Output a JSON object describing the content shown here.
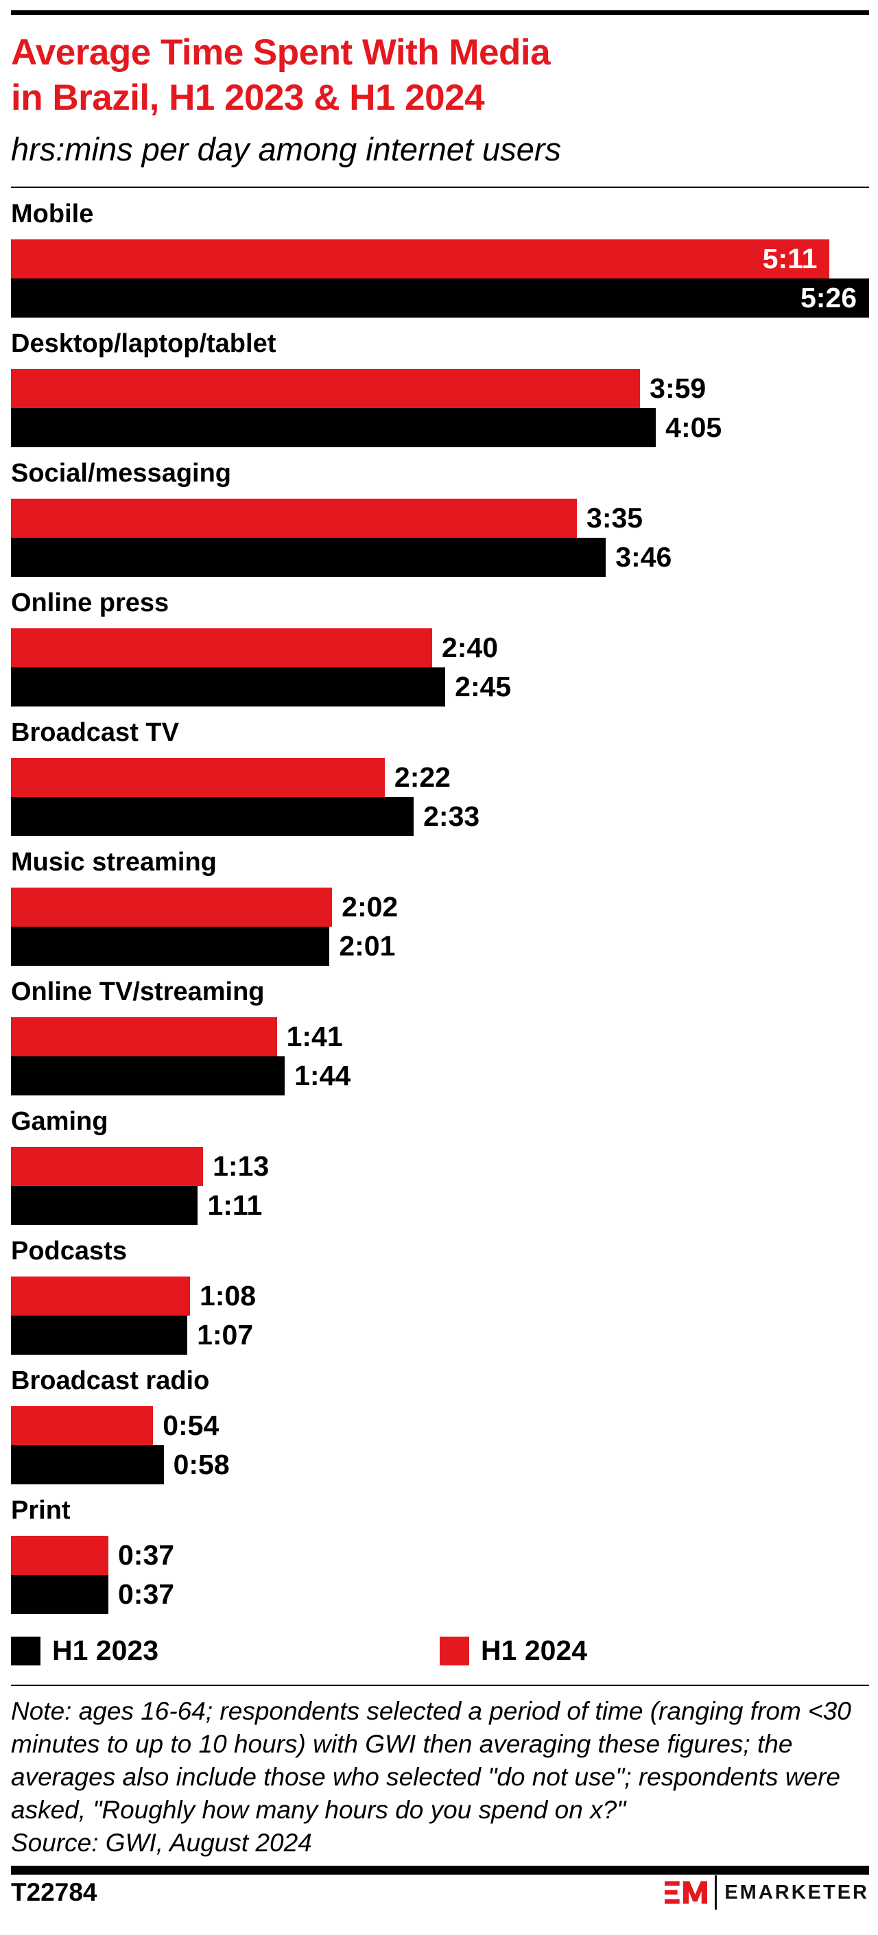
{
  "header": {
    "title_lines": [
      "Average Time Spent With Media",
      "in Brazil, H1 2023 & H1 2024"
    ],
    "subtitle": "hrs:mins per day among internet users"
  },
  "chart_data": {
    "type": "bar",
    "orientation": "horizontal",
    "unit": "hrs:mins per day among internet users",
    "max_minutes": 326,
    "colors": {
      "H1 2023": "#000000",
      "H1 2024": "#e4191f"
    },
    "legend": [
      {
        "label": "H1 2023",
        "color": "#000000"
      },
      {
        "label": "H1 2024",
        "color": "#e4191f"
      }
    ],
    "categories": [
      {
        "label": "Mobile",
        "h1_2024": "5:11",
        "h1_2024_min": 311,
        "h1_2023": "5:26",
        "h1_2023_min": 326,
        "values_inside": true
      },
      {
        "label": "Desktop/laptop/tablet",
        "h1_2024": "3:59",
        "h1_2024_min": 239,
        "h1_2023": "4:05",
        "h1_2023_min": 245,
        "values_inside": false
      },
      {
        "label": "Social/messaging",
        "h1_2024": "3:35",
        "h1_2024_min": 215,
        "h1_2023": "3:46",
        "h1_2023_min": 226,
        "values_inside": false
      },
      {
        "label": "Online press",
        "h1_2024": "2:40",
        "h1_2024_min": 160,
        "h1_2023": "2:45",
        "h1_2023_min": 165,
        "values_inside": false
      },
      {
        "label": "Broadcast TV",
        "h1_2024": "2:22",
        "h1_2024_min": 142,
        "h1_2023": "2:33",
        "h1_2023_min": 153,
        "values_inside": false
      },
      {
        "label": "Music streaming",
        "h1_2024": "2:02",
        "h1_2024_min": 122,
        "h1_2023": "2:01",
        "h1_2023_min": 121,
        "values_inside": false
      },
      {
        "label": "Online TV/streaming",
        "h1_2024": "1:41",
        "h1_2024_min": 101,
        "h1_2023": "1:44",
        "h1_2023_min": 104,
        "values_inside": false
      },
      {
        "label": "Gaming",
        "h1_2024": "1:13",
        "h1_2024_min": 73,
        "h1_2023": "1:11",
        "h1_2023_min": 71,
        "values_inside": false
      },
      {
        "label": "Podcasts",
        "h1_2024": "1:08",
        "h1_2024_min": 68,
        "h1_2023": "1:07",
        "h1_2023_min": 67,
        "values_inside": false
      },
      {
        "label": "Broadcast radio",
        "h1_2024": "0:54",
        "h1_2024_min": 54,
        "h1_2023": "0:58",
        "h1_2023_min": 58,
        "values_inside": false
      },
      {
        "label": "Print",
        "h1_2024": "0:37",
        "h1_2024_min": 37,
        "h1_2023": "0:37",
        "h1_2023_min": 37,
        "values_inside": false
      }
    ]
  },
  "footnote": {
    "note": "Note: ages 16-64; respondents selected a period of time (ranging from <30 minutes to up to 10 hours) with GWI then averaging these figures; the averages also include those who selected \"do not use\"; respondents were asked, \"Roughly how many hours do you spend on x?\"",
    "source": "Source: GWI, August 2024"
  },
  "footer": {
    "id": "T22784",
    "brand": "EMARKETER"
  }
}
